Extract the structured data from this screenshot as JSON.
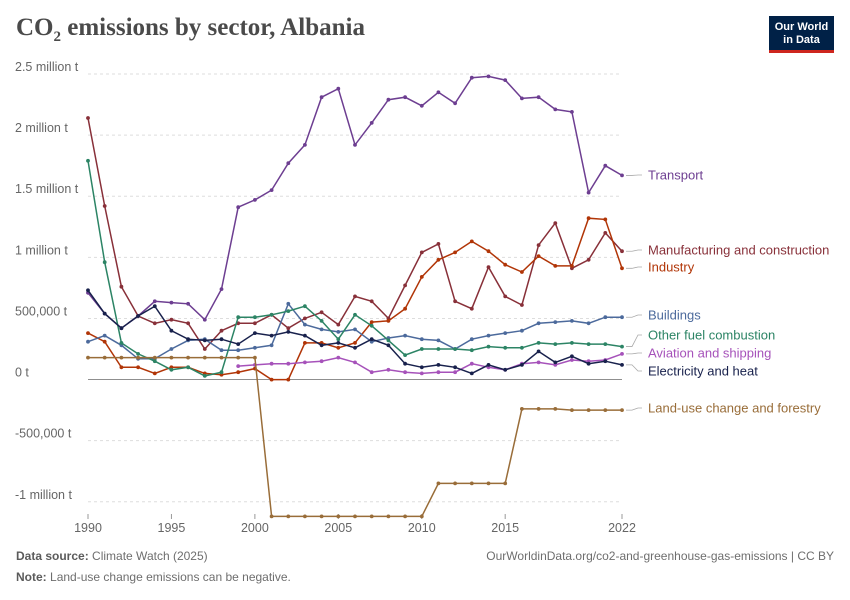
{
  "header": {
    "title_pre": "CO",
    "title_sub": "2",
    "title_post": " emissions by sector, Albania",
    "logo_line1": "Our World",
    "logo_line2": "in Data"
  },
  "footer": {
    "source_label": "Data source:",
    "source_value": "Climate Watch (2025)",
    "url_license": "OurWorldinData.org/co2-and-greenhouse-gas-emissions | CC BY",
    "note_label": "Note:",
    "note_value": "Land-use change emissions can be negative."
  },
  "chart_data": {
    "type": "line",
    "title": "CO₂ emissions by sector, Albania",
    "xlim": [
      1990,
      2022
    ],
    "ylim": [
      -1100000,
      2500000
    ],
    "x_ticks": [
      {
        "value": 1990,
        "label": "1990"
      },
      {
        "value": 1995,
        "label": "1995"
      },
      {
        "value": 2000,
        "label": "2000"
      },
      {
        "value": 2005,
        "label": "2005"
      },
      {
        "value": 2010,
        "label": "2010"
      },
      {
        "value": 2015,
        "label": "2015"
      },
      {
        "value": 2022,
        "label": "2022"
      }
    ],
    "y_ticks": [
      {
        "value": 2500000,
        "label": "2.5 million t"
      },
      {
        "value": 2000000,
        "label": "2 million t"
      },
      {
        "value": 1500000,
        "label": "1.5 million t"
      },
      {
        "value": 1000000,
        "label": "1 million t"
      },
      {
        "value": 500000,
        "label": "500,000 t"
      },
      {
        "value": 0,
        "label": "0 t"
      },
      {
        "value": -500000,
        "label": "-500,000 t"
      },
      {
        "value": -1000000,
        "label": "-1 million t"
      }
    ],
    "grid": true,
    "legend": "right-inline",
    "series": [
      {
        "name": "Transport",
        "color": "#6d3e91",
        "x": [
          1990,
          1991,
          1992,
          1993,
          1994,
          1995,
          1996,
          1997,
          1998,
          1999,
          2000,
          2001,
          2002,
          2003,
          2004,
          2005,
          2006,
          2007,
          2008,
          2009,
          2010,
          2011,
          2012,
          2013,
          2014,
          2015,
          2016,
          2017,
          2018,
          2019,
          2020,
          2021,
          2022
        ],
        "y": [
          710000,
          540000,
          420000,
          520000,
          640000,
          630000,
          620000,
          490000,
          740000,
          1410000,
          1470000,
          1550000,
          1770000,
          1920000,
          2310000,
          2380000,
          1920000,
          2100000,
          2290000,
          2310000,
          2240000,
          2350000,
          2260000,
          2470000,
          2480000,
          2450000,
          2300000,
          2310000,
          2210000,
          2190000,
          1530000,
          1750000,
          1670000
        ]
      },
      {
        "name": "Manufacturing and construction",
        "color": "#883039",
        "x": [
          1990,
          1991,
          1992,
          1993,
          1994,
          1995,
          1996,
          1997,
          1998,
          1999,
          2000,
          2001,
          2002,
          2003,
          2004,
          2005,
          2006,
          2007,
          2008,
          2009,
          2010,
          2011,
          2012,
          2013,
          2014,
          2015,
          2016,
          2017,
          2018,
          2019,
          2020,
          2021,
          2022
        ],
        "y": [
          2140000,
          1420000,
          760000,
          520000,
          460000,
          490000,
          460000,
          250000,
          400000,
          460000,
          460000,
          530000,
          420000,
          500000,
          550000,
          450000,
          680000,
          640000,
          500000,
          770000,
          1040000,
          1110000,
          640000,
          580000,
          920000,
          680000,
          610000,
          1100000,
          1280000,
          910000,
          980000,
          1200000,
          1050000
        ]
      },
      {
        "name": "Industry",
        "color": "#b13507",
        "x": [
          1990,
          1991,
          1992,
          1993,
          1994,
          1995,
          1996,
          1997,
          1998,
          1999,
          2000,
          2001,
          2002,
          2003,
          2004,
          2005,
          2006,
          2007,
          2008,
          2009,
          2010,
          2011,
          2012,
          2013,
          2014,
          2015,
          2016,
          2017,
          2018,
          2019,
          2020,
          2021,
          2022
        ],
        "y": [
          380000,
          310000,
          100000,
          100000,
          50000,
          100000,
          100000,
          50000,
          40000,
          60000,
          90000,
          0,
          0,
          300000,
          300000,
          260000,
          300000,
          470000,
          480000,
          580000,
          840000,
          980000,
          1040000,
          1130000,
          1050000,
          940000,
          880000,
          1010000,
          930000,
          930000,
          1320000,
          1310000,
          910000
        ]
      },
      {
        "name": "Buildings",
        "color": "#4c6a9c",
        "x": [
          1990,
          1991,
          1992,
          1993,
          1994,
          1995,
          1996,
          1997,
          1998,
          1999,
          2000,
          2001,
          2002,
          2003,
          2004,
          2005,
          2006,
          2007,
          2008,
          2009,
          2010,
          2011,
          2012,
          2013,
          2014,
          2015,
          2016,
          2017,
          2018,
          2019,
          2020,
          2021,
          2022
        ],
        "y": [
          310000,
          360000,
          280000,
          170000,
          170000,
          250000,
          320000,
          330000,
          240000,
          240000,
          260000,
          280000,
          620000,
          450000,
          410000,
          390000,
          410000,
          310000,
          340000,
          360000,
          330000,
          320000,
          250000,
          330000,
          360000,
          380000,
          400000,
          460000,
          470000,
          480000,
          460000,
          510000,
          510000
        ]
      },
      {
        "name": "Other fuel combustion",
        "color": "#2c8465",
        "x": [
          1990,
          1991,
          1992,
          1993,
          1994,
          1995,
          1996,
          1997,
          1998,
          1999,
          2000,
          2001,
          2002,
          2003,
          2004,
          2005,
          2006,
          2007,
          2008,
          2009,
          2010,
          2011,
          2012,
          2013,
          2014,
          2015,
          2016,
          2017,
          2018,
          2019,
          2020,
          2021,
          2022
        ],
        "y": [
          1790000,
          960000,
          300000,
          210000,
          150000,
          80000,
          100000,
          30000,
          60000,
          510000,
          510000,
          530000,
          560000,
          600000,
          480000,
          330000,
          530000,
          440000,
          320000,
          200000,
          250000,
          250000,
          250000,
          240000,
          270000,
          260000,
          260000,
          300000,
          290000,
          300000,
          290000,
          290000,
          270000
        ]
      },
      {
        "name": "Aviation and shipping",
        "color": "#a652ba",
        "x": [
          1999,
          2000,
          2001,
          2002,
          2003,
          2004,
          2005,
          2006,
          2007,
          2008,
          2009,
          2010,
          2011,
          2012,
          2013,
          2014,
          2015,
          2016,
          2017,
          2018,
          2019,
          2020,
          2021,
          2022
        ],
        "y": [
          110000,
          120000,
          130000,
          130000,
          140000,
          150000,
          180000,
          140000,
          60000,
          80000,
          60000,
          50000,
          60000,
          60000,
          130000,
          100000,
          80000,
          130000,
          140000,
          120000,
          160000,
          150000,
          160000,
          210000
        ]
      },
      {
        "name": "Electricity and heat",
        "color": "#18214c",
        "x": [
          1990,
          1991,
          1992,
          1993,
          1994,
          1995,
          1996,
          1997,
          1998,
          1999,
          2000,
          2001,
          2002,
          2003,
          2004,
          2005,
          2006,
          2007,
          2008,
          2009,
          2010,
          2011,
          2012,
          2013,
          2014,
          2015,
          2016,
          2017,
          2018,
          2019,
          2020,
          2021,
          2022
        ],
        "y": [
          730000,
          540000,
          420000,
          520000,
          600000,
          400000,
          330000,
          320000,
          330000,
          290000,
          380000,
          360000,
          390000,
          360000,
          280000,
          300000,
          260000,
          330000,
          280000,
          130000,
          100000,
          120000,
          100000,
          50000,
          120000,
          80000,
          120000,
          230000,
          140000,
          190000,
          130000,
          150000,
          120000
        ]
      },
      {
        "name": "Land-use change and forestry",
        "color": "#996d39",
        "x": [
          1990,
          1991,
          1992,
          1993,
          1994,
          1995,
          1996,
          1997,
          1998,
          1999,
          2000,
          2001,
          2002,
          2003,
          2004,
          2005,
          2006,
          2007,
          2008,
          2009,
          2010,
          2011,
          2012,
          2013,
          2014,
          2015,
          2016,
          2017,
          2018,
          2019,
          2020,
          2021,
          2022
        ],
        "y": [
          180000,
          180000,
          180000,
          180000,
          180000,
          180000,
          180000,
          180000,
          180000,
          180000,
          180000,
          -1120000,
          -1120000,
          -1120000,
          -1120000,
          -1120000,
          -1120000,
          -1120000,
          -1120000,
          -1120000,
          -1120000,
          -850000,
          -850000,
          -850000,
          -850000,
          -850000,
          -240000,
          -240000,
          -240000,
          -250000,
          -250000,
          -250000,
          -250000
        ]
      }
    ]
  }
}
